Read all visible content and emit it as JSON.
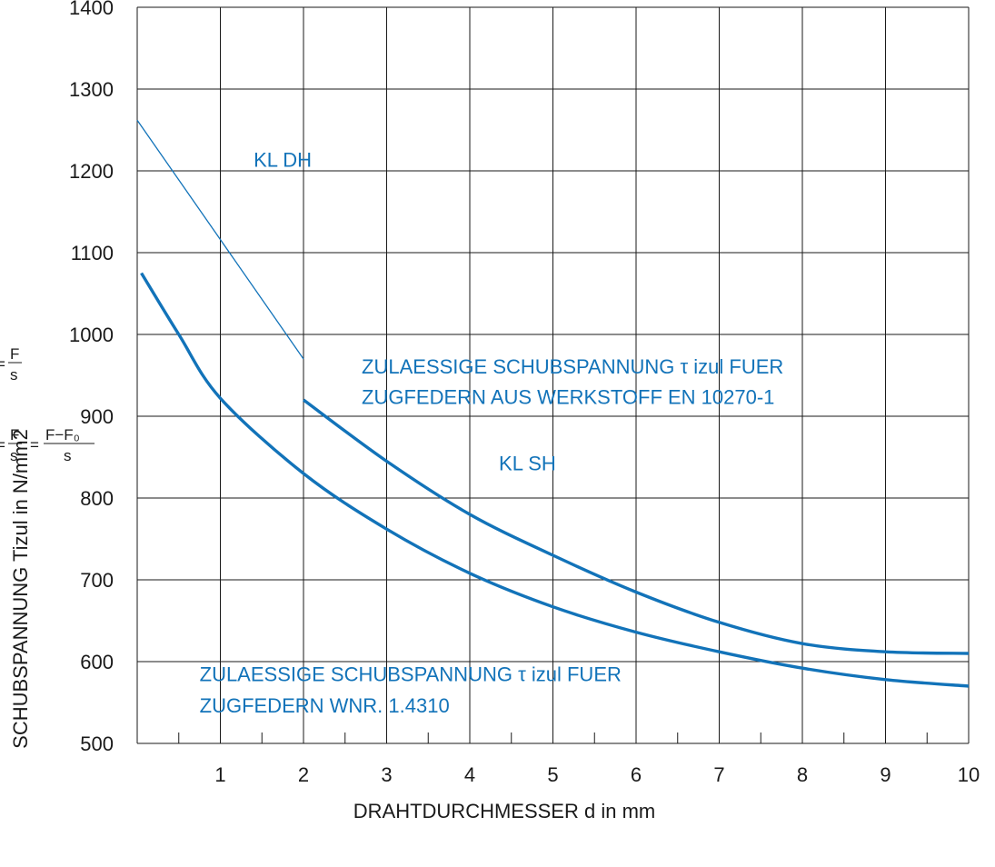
{
  "chart_data": {
    "type": "line",
    "title": "",
    "xlabel": "DRAHTDURCHMESSER d in mm",
    "ylabel": "SCHUBSPANNUNG Tizul in N/mm2",
    "xlim": [
      0,
      10
    ],
    "ylim": [
      500,
      1400
    ],
    "x_ticks": [
      1,
      2,
      3,
      4,
      5,
      6,
      7,
      8,
      9,
      10
    ],
    "y_ticks": [
      500,
      600,
      700,
      800,
      900,
      1000,
      1100,
      1200,
      1300,
      1400
    ],
    "grid": true,
    "line_color": "#1273b9",
    "series": [
      {
        "name": "KL DH",
        "style": "thin",
        "x": [
          0,
          2
        ],
        "y": [
          1262,
          970
        ]
      },
      {
        "name": "KL SH",
        "style": "thick",
        "x": [
          2,
          3,
          4,
          5,
          6,
          7,
          8,
          9,
          10
        ],
        "y": [
          920,
          845,
          780,
          730,
          685,
          648,
          622,
          612,
          610
        ]
      },
      {
        "name": "",
        "style": "thick",
        "x": [
          0.05,
          0.5,
          1,
          2,
          3,
          4,
          5,
          6,
          7,
          8,
          9,
          10
        ],
        "y": [
          1075,
          1000,
          922,
          830,
          762,
          708,
          667,
          636,
          612,
          592,
          578,
          570
        ]
      }
    ],
    "annotations": [
      {
        "text": "KL  DH",
        "x": 1.4,
        "y": 1205
      },
      {
        "text": "KL  SH",
        "x": 4.35,
        "y": 834
      },
      {
        "text": "ZULAESSIGE SCHUBSPANNUNG τ izul FUER",
        "x": 2.7,
        "y": 952
      },
      {
        "text": "ZUGFEDERN AUS WERKSTOFF EN 10270-1",
        "x": 2.7,
        "y": 915
      },
      {
        "text": "ZULAESSIGE SCHUBSPANNUNG τ izul FUER",
        "x": 0.75,
        "y": 576
      },
      {
        "text": "ZUGFEDERN WNR. 1.4310",
        "x": 0.75,
        "y": 538
      }
    ],
    "formula_1": {
      "lhs": "=",
      "num": "F",
      "den": "s"
    },
    "formula_2": {
      "lhs": "=",
      "num1": "F",
      "den1": "s",
      "mid": "=",
      "num2": "F−F₀",
      "den2": "s"
    }
  }
}
